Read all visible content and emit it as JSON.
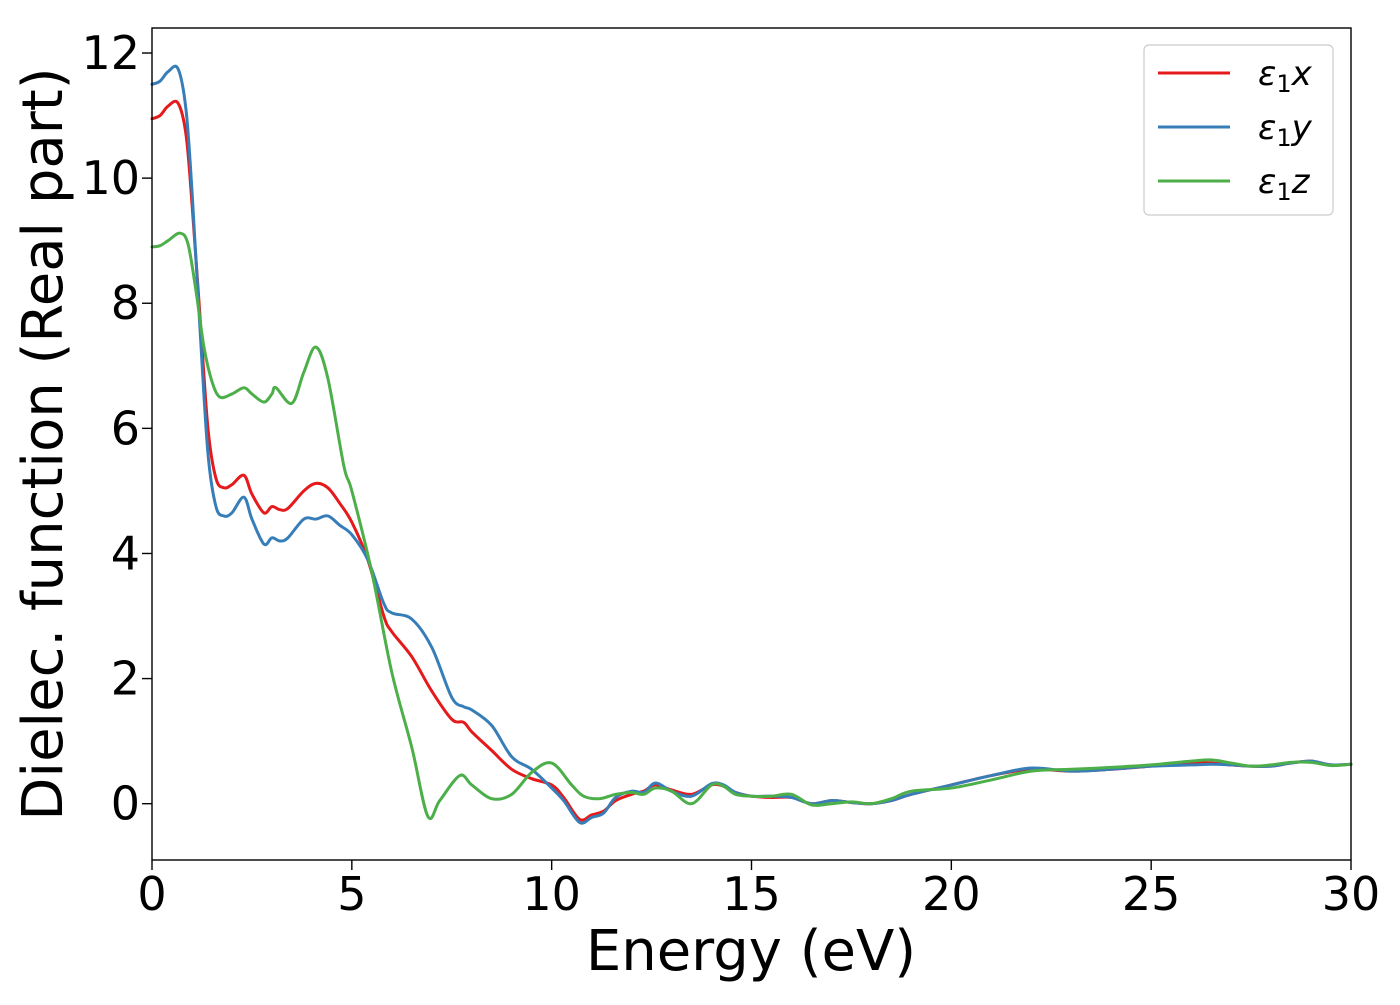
{
  "chart_data": {
    "type": "line",
    "title": "",
    "xlabel": "Energy (eV)",
    "ylabel": "Dielec. function (Real part)",
    "xlim": [
      0,
      30
    ],
    "ylim": [
      -0.9,
      12.4
    ],
    "xticks": [
      0,
      5,
      10,
      15,
      20,
      25,
      30
    ],
    "yticks": [
      0,
      2,
      4,
      6,
      8,
      10,
      12
    ],
    "xtick_labels": [
      "0",
      "5",
      "10",
      "15",
      "20",
      "25",
      "30"
    ],
    "ytick_labels": [
      "0",
      "2",
      "4",
      "6",
      "8",
      "10",
      "12"
    ],
    "grid": false,
    "legend_position": "top-right",
    "series": [
      {
        "name": "ε1x",
        "legend_base": "ε",
        "legend_sub": "1",
        "legend_var": "x",
        "color": "#e41a1c",
        "x": [
          0,
          0.2,
          0.4,
          0.65,
          0.85,
          1.0,
          1.2,
          1.4,
          1.6,
          1.8,
          2.0,
          2.3,
          2.5,
          2.8,
          3.0,
          3.2,
          3.4,
          3.8,
          4.1,
          4.4,
          4.7,
          5.0,
          5.4,
          5.8,
          6.0,
          6.5,
          7.0,
          7.5,
          7.8,
          8.0,
          8.5,
          9.0,
          9.5,
          10.0,
          10.3,
          10.7,
          11.0,
          11.3,
          11.6,
          12.0,
          12.3,
          12.6,
          13.0,
          13.5,
          14.0,
          14.3,
          14.6,
          15.0,
          15.5,
          16.0,
          16.5,
          17.0,
          17.5,
          18.0,
          18.5,
          19.0,
          20.0,
          21.0,
          22.0,
          23.0,
          24.0,
          25.0,
          26.0,
          26.5,
          27.0,
          27.5,
          28.0,
          28.5,
          29.0,
          29.5,
          30.0
        ],
        "y": [
          10.95,
          11.0,
          11.15,
          11.2,
          10.7,
          9.6,
          7.8,
          6.0,
          5.2,
          5.05,
          5.1,
          5.25,
          4.95,
          4.65,
          4.75,
          4.7,
          4.72,
          5.0,
          5.12,
          5.05,
          4.8,
          4.5,
          3.9,
          3.0,
          2.75,
          2.35,
          1.8,
          1.35,
          1.3,
          1.15,
          0.85,
          0.55,
          0.4,
          0.3,
          0.1,
          -0.25,
          -0.18,
          -0.12,
          0.05,
          0.15,
          0.2,
          0.3,
          0.22,
          0.15,
          0.3,
          0.28,
          0.18,
          0.12,
          0.1,
          0.1,
          0.0,
          0.05,
          0.02,
          0.0,
          0.05,
          0.15,
          0.3,
          0.45,
          0.55,
          0.52,
          0.55,
          0.6,
          0.65,
          0.65,
          0.62,
          0.6,
          0.6,
          0.65,
          0.68,
          0.62,
          0.63
        ]
      },
      {
        "name": "ε1y",
        "legend_base": "ε",
        "legend_sub": "1",
        "legend_var": "y",
        "color": "#377eb8",
        "x": [
          0,
          0.2,
          0.4,
          0.65,
          0.85,
          1.0,
          1.2,
          1.4,
          1.6,
          1.8,
          2.0,
          2.3,
          2.5,
          2.8,
          3.0,
          3.2,
          3.4,
          3.8,
          4.1,
          4.4,
          4.7,
          5.0,
          5.4,
          5.8,
          6.0,
          6.5,
          7.0,
          7.5,
          7.8,
          8.0,
          8.5,
          9.0,
          9.5,
          10.0,
          10.3,
          10.7,
          11.0,
          11.3,
          11.6,
          12.0,
          12.3,
          12.6,
          13.0,
          13.5,
          14.0,
          14.3,
          14.6,
          15.0,
          15.5,
          16.0,
          16.5,
          17.0,
          17.5,
          18.0,
          18.5,
          19.0,
          20.0,
          21.0,
          22.0,
          23.0,
          24.0,
          25.0,
          26.0,
          26.5,
          27.0,
          27.5,
          28.0,
          28.5,
          29.0,
          29.5,
          30.0
        ],
        "y": [
          11.5,
          11.55,
          11.7,
          11.75,
          11.1,
          9.8,
          7.6,
          5.6,
          4.75,
          4.6,
          4.65,
          4.9,
          4.55,
          4.15,
          4.25,
          4.2,
          4.25,
          4.55,
          4.55,
          4.6,
          4.45,
          4.3,
          3.9,
          3.2,
          3.05,
          2.95,
          2.5,
          1.7,
          1.55,
          1.5,
          1.25,
          0.75,
          0.55,
          0.25,
          0.05,
          -0.3,
          -0.22,
          -0.15,
          0.1,
          0.2,
          0.18,
          0.33,
          0.2,
          0.12,
          0.32,
          0.3,
          0.18,
          0.12,
          0.12,
          0.1,
          0.0,
          0.05,
          0.02,
          0.0,
          0.05,
          0.15,
          0.3,
          0.45,
          0.57,
          0.52,
          0.55,
          0.6,
          0.62,
          0.63,
          0.62,
          0.6,
          0.6,
          0.65,
          0.68,
          0.62,
          0.63
        ]
      },
      {
        "name": "ε1z",
        "legend_base": "ε",
        "legend_sub": "1",
        "legend_var": "z",
        "color": "#4daf4a",
        "x": [
          0,
          0.2,
          0.4,
          0.7,
          0.9,
          1.1,
          1.3,
          1.5,
          1.7,
          2.0,
          2.3,
          2.5,
          2.8,
          3.0,
          3.1,
          3.5,
          3.8,
          4.1,
          4.4,
          4.8,
          5.0,
          5.5,
          6.0,
          6.5,
          6.9,
          7.2,
          7.7,
          8.0,
          8.5,
          9.0,
          9.5,
          10.0,
          10.5,
          10.8,
          11.2,
          11.6,
          12.0,
          12.3,
          12.6,
          13.0,
          13.5,
          14.0,
          14.3,
          14.6,
          15.0,
          15.5,
          16.0,
          16.5,
          17.0,
          17.5,
          18.0,
          18.5,
          19.0,
          20.0,
          21.0,
          22.0,
          23.0,
          24.0,
          25.0,
          26.0,
          26.5,
          27.0,
          27.5,
          28.0,
          28.5,
          29.0,
          29.5,
          30.0
        ],
        "y": [
          8.9,
          8.92,
          9.0,
          9.12,
          8.95,
          8.2,
          7.3,
          6.75,
          6.5,
          6.55,
          6.65,
          6.55,
          6.42,
          6.55,
          6.65,
          6.4,
          6.9,
          7.3,
          6.8,
          5.4,
          5.0,
          3.7,
          2.1,
          0.9,
          -0.2,
          0.05,
          0.45,
          0.3,
          0.08,
          0.15,
          0.5,
          0.65,
          0.3,
          0.12,
          0.08,
          0.15,
          0.18,
          0.15,
          0.25,
          0.2,
          0.0,
          0.3,
          0.28,
          0.15,
          0.12,
          0.12,
          0.15,
          -0.02,
          0.0,
          0.03,
          0.0,
          0.08,
          0.2,
          0.25,
          0.38,
          0.52,
          0.55,
          0.58,
          0.62,
          0.68,
          0.7,
          0.65,
          0.6,
          0.62,
          0.66,
          0.66,
          0.61,
          0.63
        ]
      }
    ]
  }
}
